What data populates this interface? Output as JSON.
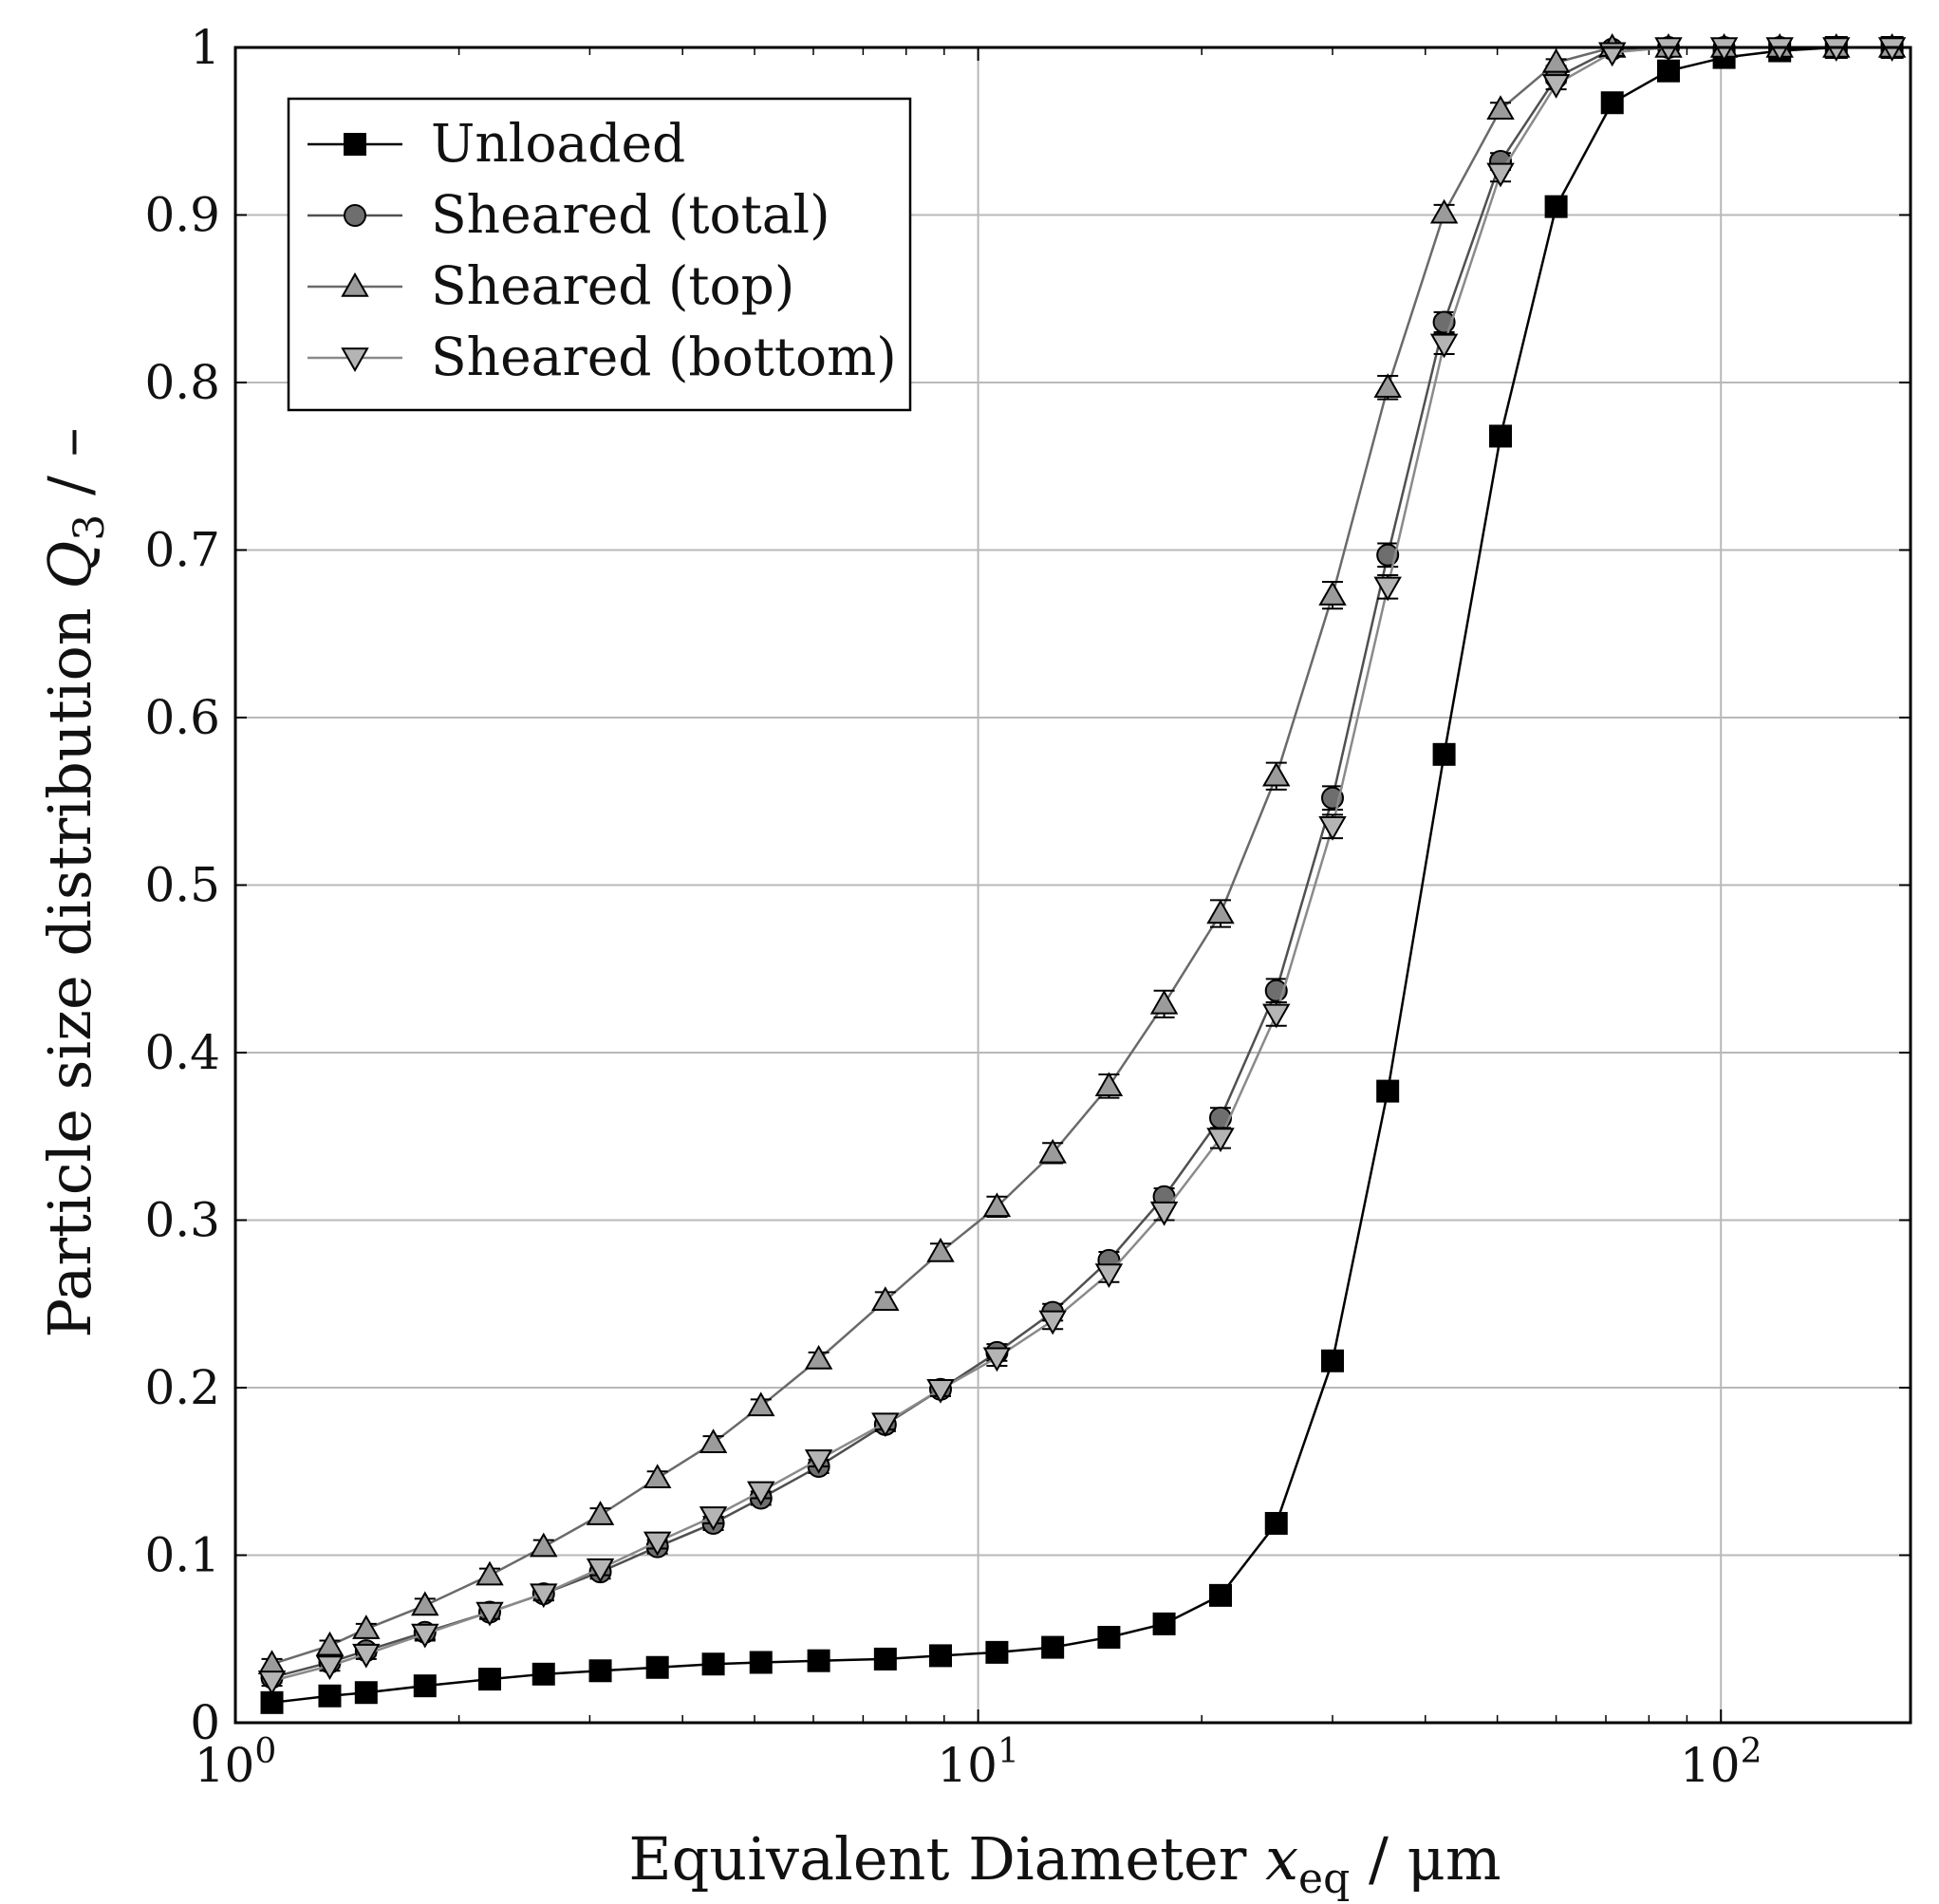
{
  "chart_data": {
    "type": "line",
    "xscale": "log",
    "xlabel": {
      "main": "Equivalent Diameter ",
      "var": "x",
      "sub": "eq",
      "unit": " / μm"
    },
    "ylabel": {
      "main": "Particle size distribution ",
      "var": "Q",
      "sub": "3",
      "unit": " / –"
    },
    "xlim": [
      1,
      180
    ],
    "ylim": [
      0,
      1
    ],
    "grid": true,
    "legend_position": "top-left",
    "x_ticks": [
      {
        "value": 1,
        "base": "10",
        "exp": "0"
      },
      {
        "value": 10,
        "base": "10",
        "exp": "1"
      },
      {
        "value": 100,
        "base": "10",
        "exp": "2"
      }
    ],
    "y_ticks": [
      {
        "value": 0,
        "label": "0"
      },
      {
        "value": 0.1,
        "label": "0.1"
      },
      {
        "value": 0.2,
        "label": "0.2"
      },
      {
        "value": 0.3,
        "label": "0.3"
      },
      {
        "value": 0.4,
        "label": "0.4"
      },
      {
        "value": 0.5,
        "label": "0.5"
      },
      {
        "value": 0.6,
        "label": "0.6"
      },
      {
        "value": 0.7,
        "label": "0.7"
      },
      {
        "value": 0.8,
        "label": "0.8"
      },
      {
        "value": 0.9,
        "label": "0.9"
      },
      {
        "value": 1,
        "label": "1"
      }
    ],
    "x": [
      1.12,
      1.34,
      1.5,
      1.8,
      2.2,
      2.6,
      3.1,
      3.7,
      4.4,
      5.1,
      6.1,
      7.5,
      8.9,
      10.6,
      12.6,
      15.0,
      17.8,
      21.2,
      25.2,
      30.0,
      35.6,
      42.4,
      50.5,
      60.0,
      71.4,
      85.0,
      101.0,
      120.0,
      143.0,
      170.0
    ],
    "series": [
      {
        "name": "Unloaded",
        "marker": "square",
        "color": "#000000",
        "values": [
          0.012,
          0.016,
          0.018,
          0.022,
          0.026,
          0.029,
          0.031,
          0.033,
          0.035,
          0.036,
          0.037,
          0.038,
          0.04,
          0.042,
          0.045,
          0.051,
          0.059,
          0.076,
          0.119,
          0.216,
          0.377,
          0.578,
          0.768,
          0.905,
          0.967,
          0.986,
          0.994,
          0.998,
          1.0,
          1.0
        ],
        "errors": []
      },
      {
        "name": "Sheared (total)",
        "marker": "circle",
        "color": "#6e6e6e",
        "values": [
          0.027,
          0.036,
          0.043,
          0.054,
          0.066,
          0.077,
          0.09,
          0.105,
          0.119,
          0.134,
          0.153,
          0.178,
          0.199,
          0.221,
          0.245,
          0.276,
          0.314,
          0.361,
          0.437,
          0.552,
          0.697,
          0.836,
          0.932,
          0.982,
          0.999,
          1.0,
          1.0,
          1.0,
          1.0,
          1.0
        ],
        "errors": [
          0.003,
          0.003,
          0.003,
          0.004,
          0.004,
          0.004,
          0.004,
          0.004,
          0.004,
          0.004,
          0.004,
          0.004,
          0.004,
          0.005,
          0.005,
          0.005,
          0.005,
          0.006,
          0.007,
          0.007,
          0.007,
          0.006,
          0.005,
          0.003,
          0.002,
          0.0,
          0.0,
          0.0,
          0.0,
          0.0
        ]
      },
      {
        "name": "Sheared (top)",
        "marker": "triangle-up",
        "color": "#9b9b9b",
        "values": [
          0.035,
          0.046,
          0.056,
          0.07,
          0.088,
          0.105,
          0.124,
          0.146,
          0.167,
          0.189,
          0.217,
          0.252,
          0.281,
          0.308,
          0.34,
          0.38,
          0.429,
          0.483,
          0.565,
          0.673,
          0.797,
          0.901,
          0.963,
          0.991,
          1.0,
          1.0,
          1.0,
          1.0,
          1.0,
          1.0
        ],
        "errors": [
          0.003,
          0.003,
          0.003,
          0.004,
          0.004,
          0.004,
          0.004,
          0.004,
          0.004,
          0.004,
          0.004,
          0.005,
          0.005,
          0.006,
          0.006,
          0.007,
          0.008,
          0.008,
          0.008,
          0.008,
          0.007,
          0.005,
          0.004,
          0.002,
          0.001,
          0.0,
          0.0,
          0.0,
          0.0,
          0.0
        ]
      },
      {
        "name": "Sheared (bottom)",
        "marker": "triangle-down",
        "color": "#b4b4b4",
        "values": [
          0.025,
          0.034,
          0.041,
          0.053,
          0.066,
          0.077,
          0.092,
          0.108,
          0.123,
          0.138,
          0.157,
          0.179,
          0.199,
          0.218,
          0.24,
          0.268,
          0.305,
          0.349,
          0.423,
          0.535,
          0.678,
          0.823,
          0.925,
          0.978,
          0.997,
          1.0,
          1.0,
          1.0,
          1.0,
          1.0
        ],
        "errors": [
          0.003,
          0.003,
          0.003,
          0.004,
          0.004,
          0.004,
          0.004,
          0.004,
          0.004,
          0.004,
          0.004,
          0.004,
          0.004,
          0.005,
          0.005,
          0.005,
          0.005,
          0.006,
          0.007,
          0.007,
          0.007,
          0.006,
          0.005,
          0.003,
          0.002,
          0.0,
          0.0,
          0.0,
          0.0,
          0.0
        ]
      }
    ]
  }
}
